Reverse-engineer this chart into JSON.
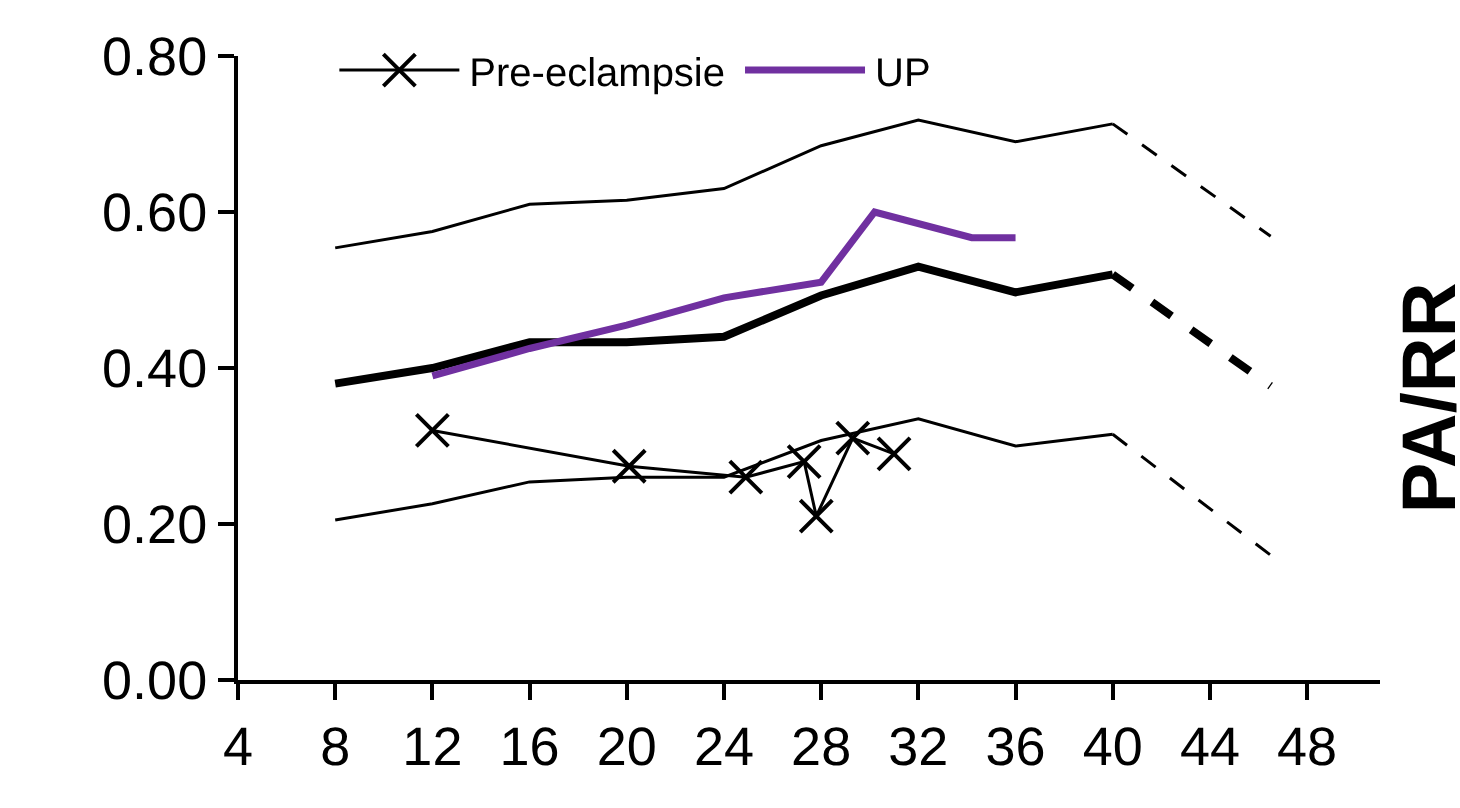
{
  "chart_data": {
    "type": "line",
    "ylabel": "PA/RR",
    "xlim": [
      4,
      51
    ],
    "xticks": [
      4,
      8,
      12,
      16,
      20,
      24,
      28,
      32,
      36,
      40,
      44,
      48
    ],
    "ylim": [
      0,
      0.8
    ],
    "yticks": [
      {
        "value": 0,
        "label": "0.00"
      },
      {
        "value": 0.2,
        "label": "0.20"
      },
      {
        "value": 0.4,
        "label": "0.40"
      },
      {
        "value": 0.6,
        "label": "0.60"
      },
      {
        "value": 0.8,
        "label": "0.80"
      }
    ],
    "legend": "top",
    "series": [
      {
        "color": "#000000",
        "x": [
          8,
          12,
          16,
          20,
          24,
          28,
          32,
          36,
          40
        ],
        "values": [
          0.554,
          0.575,
          0.61,
          0.615,
          0.63,
          0.685,
          0.718,
          0.69,
          0.713
        ],
        "line_style": "solid",
        "marker": "none"
      },
      {
        "color": "#000000",
        "x": [
          40,
          46.5
        ],
        "values": [
          0.713,
          0.569
        ],
        "line_style": "dashed",
        "marker": "none"
      },
      {
        "color": "#000000",
        "x": [
          8,
          12,
          16,
          20,
          24,
          28,
          32,
          36,
          40
        ],
        "values": [
          0.38,
          0.4,
          0.433,
          0.433,
          0.44,
          0.493,
          0.53,
          0.497,
          0.52
        ],
        "line_style": "solid",
        "marker": "none"
      },
      {
        "color": "#000000",
        "x": [
          40,
          46.5
        ],
        "values": [
          0.52,
          0.377
        ],
        "line_style": "dashed",
        "marker": "none"
      },
      {
        "color": "#000000",
        "x": [
          8,
          12,
          16,
          20,
          24,
          28,
          32,
          36,
          40
        ],
        "values": [
          0.205,
          0.226,
          0.254,
          0.26,
          0.26,
          0.307,
          0.335,
          0.3,
          0.315
        ],
        "line_style": "solid",
        "marker": "none"
      },
      {
        "color": "#000000",
        "x": [
          40,
          46.5
        ],
        "values": [
          0.315,
          0.16
        ],
        "line_style": "dashed",
        "marker": "none"
      },
      {
        "name": "Pre-eclampsie",
        "color": "#000000",
        "x": [
          12,
          20.1,
          24.9,
          27.3,
          27.8,
          29.3,
          31
        ],
        "values": [
          0.32,
          0.274,
          0.26,
          0.28,
          0.21,
          0.31,
          0.29
        ],
        "line_style": "solid",
        "marker": "cross"
      },
      {
        "name": "UP",
        "color": "#7030a0",
        "x": [
          12,
          16,
          20,
          24,
          28,
          30.2,
          34.2,
          36
        ],
        "values": [
          0.39,
          0.425,
          0.455,
          0.49,
          0.51,
          0.6,
          0.567,
          0.567
        ],
        "line_style": "solid",
        "marker": "none"
      }
    ]
  }
}
